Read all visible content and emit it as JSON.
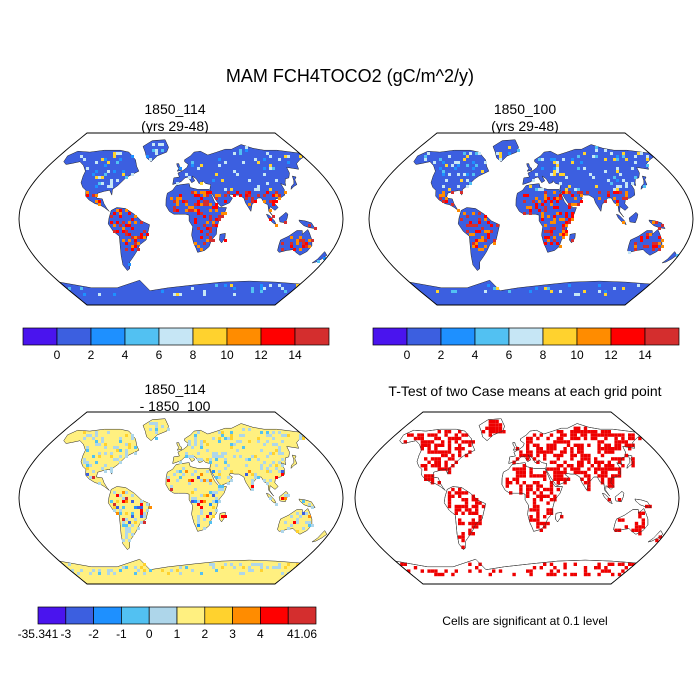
{
  "figure": {
    "title": "MAM FCH4TOCO2 (gC/m^2/y)"
  },
  "panels": [
    {
      "id": "case1",
      "title_line1": "1850_114",
      "title_line2": "(yrs 29-48)"
    },
    {
      "id": "case2",
      "title_line1": "1850_100",
      "title_line2": "(yrs 29-48)"
    },
    {
      "id": "diff",
      "title_line1": "1850_114",
      "title_line2": "- 1850_100"
    },
    {
      "id": "ttest",
      "title_line1": "T-Test of two Case means at each grid point",
      "title_line2": ""
    }
  ],
  "colorbars": {
    "top": {
      "colors": [
        "#4a14ee",
        "#3c5fe0",
        "#1e90ff",
        "#52c1f2",
        "#c6e6f5",
        "#ffd22e",
        "#ff8c00",
        "#ff0000",
        "#d42e2e"
      ],
      "labels": [
        "0",
        "2",
        "4",
        "6",
        "8",
        "10",
        "12",
        "14"
      ]
    },
    "diff": {
      "colors": [
        "#4a14ee",
        "#3c5fe0",
        "#1e90ff",
        "#52c1f2",
        "#aed6ea",
        "#fff080",
        "#ffd22e",
        "#ff8c00",
        "#ff0000",
        "#d42e2e"
      ],
      "labels": [
        "-35.341",
        "-3",
        "-2",
        "-1",
        "0",
        "1",
        "2",
        "3",
        "4",
        "41.06"
      ]
    }
  },
  "ttest_note": "Cells are significant at 0.1 level",
  "map_colors": {
    "case_background": "#3c5fe0",
    "diff_background": "#fff080",
    "significant": "#ee0000",
    "ocean": "#ffffff"
  }
}
